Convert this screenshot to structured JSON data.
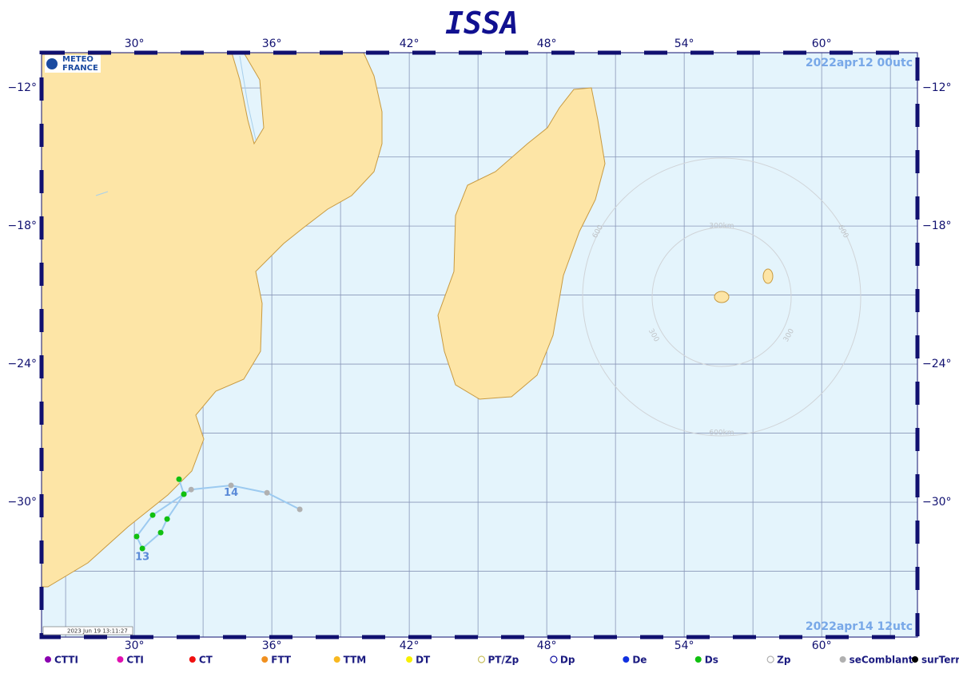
{
  "title": "ISSA",
  "logo": {
    "line1": "METEO",
    "line2": "FRANCE"
  },
  "date_start": "2022apr12  00utc",
  "date_end": "2022apr14  12utc",
  "timestamp": "2023 Jun 19 13:11:27",
  "map": {
    "lonlim": [
      25.95,
      64.18
    ],
    "latlim": [
      -10.47,
      -35.86
    ],
    "lonticks": [
      {
        "value": 30,
        "label": "30°"
      },
      {
        "value": 36,
        "label": "36°"
      },
      {
        "value": 42,
        "label": "42°"
      },
      {
        "value": 48,
        "label": "48°"
      },
      {
        "value": 54,
        "label": "54°"
      },
      {
        "value": 60,
        "label": "60°"
      }
    ],
    "latticks": [
      {
        "value": -12,
        "label": "−12°"
      },
      {
        "value": -18,
        "label": "−18°"
      },
      {
        "value": -24,
        "label": "−24°"
      },
      {
        "value": -30,
        "label": "−30°"
      }
    ],
    "lon_grid": [
      27,
      30,
      33,
      36,
      39,
      42,
      45,
      48,
      51,
      54,
      57,
      60,
      63
    ],
    "lat_grid": [
      -12,
      -15,
      -18,
      -21,
      -24,
      -27,
      -30,
      -33
    ]
  },
  "range_rings": {
    "labels": [
      "300km",
      "600",
      "600",
      "300",
      "300",
      "600km"
    ]
  },
  "track": {
    "color": "#9ccaf0",
    "points": [
      {
        "lon": 31.95,
        "lat": -29.0,
        "kind": "Ds"
      },
      {
        "lon": 32.16,
        "lat": -29.65,
        "kind": "Ds"
      },
      {
        "lon": 31.43,
        "lat": -30.73,
        "kind": "Ds"
      },
      {
        "lon": 31.15,
        "lat": -31.32,
        "kind": "Ds"
      },
      {
        "lon": 30.35,
        "lat": -32.01,
        "kind": "Ds"
      },
      {
        "lon": 30.1,
        "lat": -31.49,
        "kind": "Ds"
      },
      {
        "lon": 30.8,
        "lat": -30.56,
        "kind": "Ds"
      },
      {
        "lon": 32.16,
        "lat": -29.65,
        "kind": "Ds"
      },
      {
        "lon": 32.48,
        "lat": -29.45,
        "kind": "seComblant"
      },
      {
        "lon": 34.22,
        "lat": -29.27,
        "kind": "seComblant"
      },
      {
        "lon": 35.79,
        "lat": -29.59,
        "kind": "seComblant"
      },
      {
        "lon": 37.22,
        "lat": -30.31,
        "kind": "seComblant"
      }
    ],
    "labels": [
      {
        "text": "13",
        "lon": 30.35,
        "lat": -32.4
      },
      {
        "text": "14",
        "lon": 34.22,
        "lat": -29.6
      }
    ]
  },
  "legend": [
    {
      "name": "CTTI",
      "color": "#8a00b0"
    },
    {
      "name": "CTI",
      "color": "#e010b0"
    },
    {
      "name": "CT",
      "color": "#f01010"
    },
    {
      "name": "FTT",
      "color": "#f09020"
    },
    {
      "name": "TTM",
      "color": "#f8b820"
    },
    {
      "name": "DT",
      "color": "#f8f000"
    },
    {
      "name": "PT/Zp",
      "color": "#c8c060",
      "hollow": true
    },
    {
      "name": "Dp",
      "color": "#1010a0",
      "hollow": true
    },
    {
      "name": "De",
      "color": "#1030e0"
    },
    {
      "name": "Ds",
      "color": "#10c010"
    },
    {
      "name": "Zp",
      "color": "#b0b0b0",
      "hollow": true
    },
    {
      "name": "seComblant",
      "color": "#b0b0b0"
    },
    {
      "name": "surTerre",
      "color": "#000000"
    }
  ]
}
